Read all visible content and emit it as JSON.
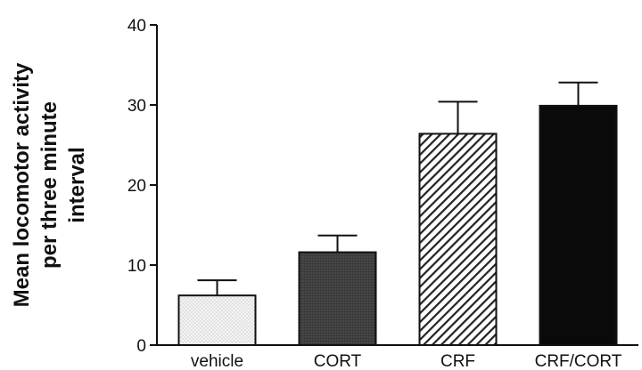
{
  "chart_data": {
    "type": "bar",
    "title": "",
    "xlabel": "",
    "ylabel_lines": [
      "Mean locomotor activity",
      "per three minute",
      "interval"
    ],
    "ylim": [
      0,
      40
    ],
    "yticks": [
      0,
      10,
      20,
      30,
      40
    ],
    "categories": [
      "vehicle",
      "CORT",
      "CRF",
      "CRF/CORT"
    ],
    "values": [
      6.2,
      11.6,
      26.4,
      29.9
    ],
    "error_upper": [
      8.1,
      13.7,
      30.4,
      32.8
    ],
    "fills": [
      "light dotted",
      "dark stippled",
      "diagonal hatch",
      "solid black"
    ],
    "grid": false,
    "legend": "none"
  }
}
